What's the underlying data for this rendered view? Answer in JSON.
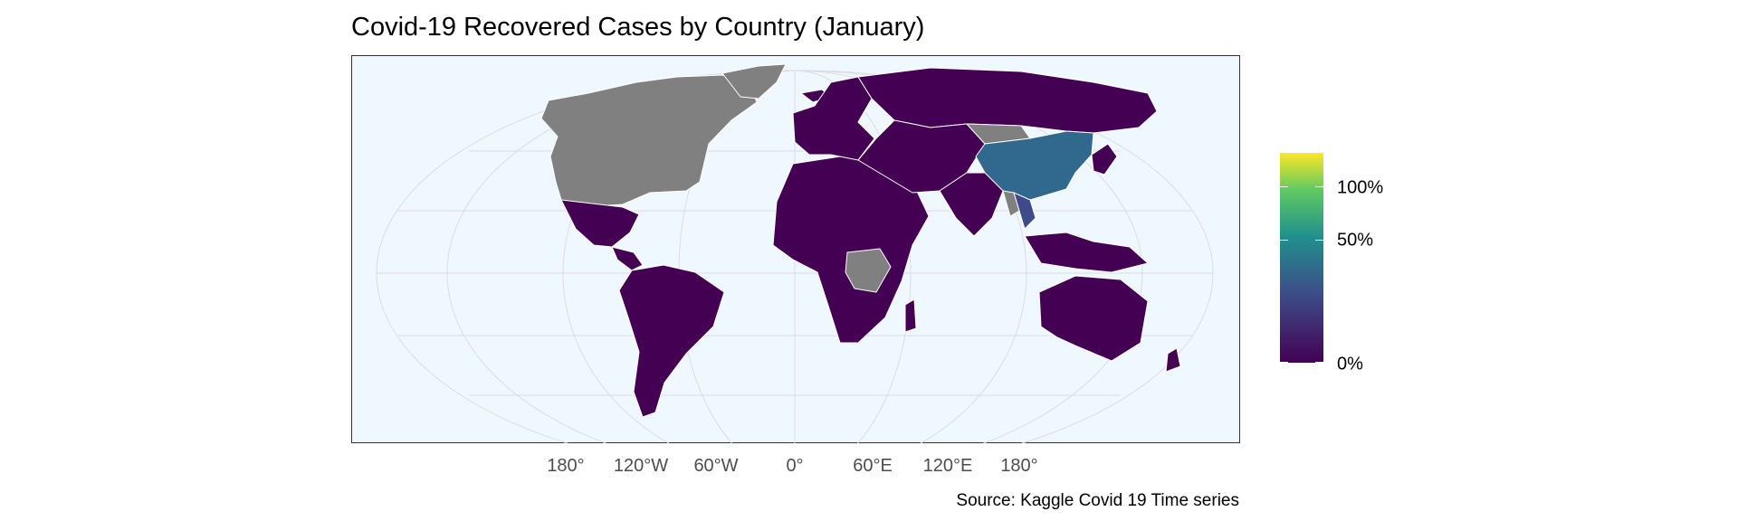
{
  "chart_data": {
    "type": "choropleth-map",
    "title": "Covid-19 Recovered Cases by Country (January)",
    "caption": "Source: Kaggle Covid 19 Time series",
    "projection": "Robinson",
    "longitude_ticks": [
      "180°",
      "120°W",
      "60°W",
      "0°",
      "60°E",
      "120°E",
      "180°"
    ],
    "legend": {
      "palette": "viridis",
      "labels": [
        "0%",
        "50%",
        "100%"
      ],
      "colors": {
        "0%": "#440154",
        "50%": "#21908c",
        "100%": "#fde725"
      },
      "missing_color": "#808080"
    },
    "regions": [
      {
        "name": "China",
        "fill": "#31688e",
        "approx_value_pct": 30
      },
      {
        "name": "Thailand",
        "fill": "#3e4a89",
        "approx_value_pct": 18
      },
      {
        "name": "United States",
        "fill": "#808080",
        "value": null
      },
      {
        "name": "Canada",
        "fill": "#808080",
        "value": null
      },
      {
        "name": "Greenland",
        "fill": "#808080",
        "value": null
      },
      {
        "name": "DR Congo",
        "fill": "#808080",
        "value": null
      },
      {
        "name": "Mongolia",
        "fill": "#808080",
        "value": null
      },
      {
        "name": "Myanmar",
        "fill": "#808080",
        "value": null
      }
    ],
    "default_fill": "#440154",
    "ocean_color": "#f0f8ff"
  }
}
